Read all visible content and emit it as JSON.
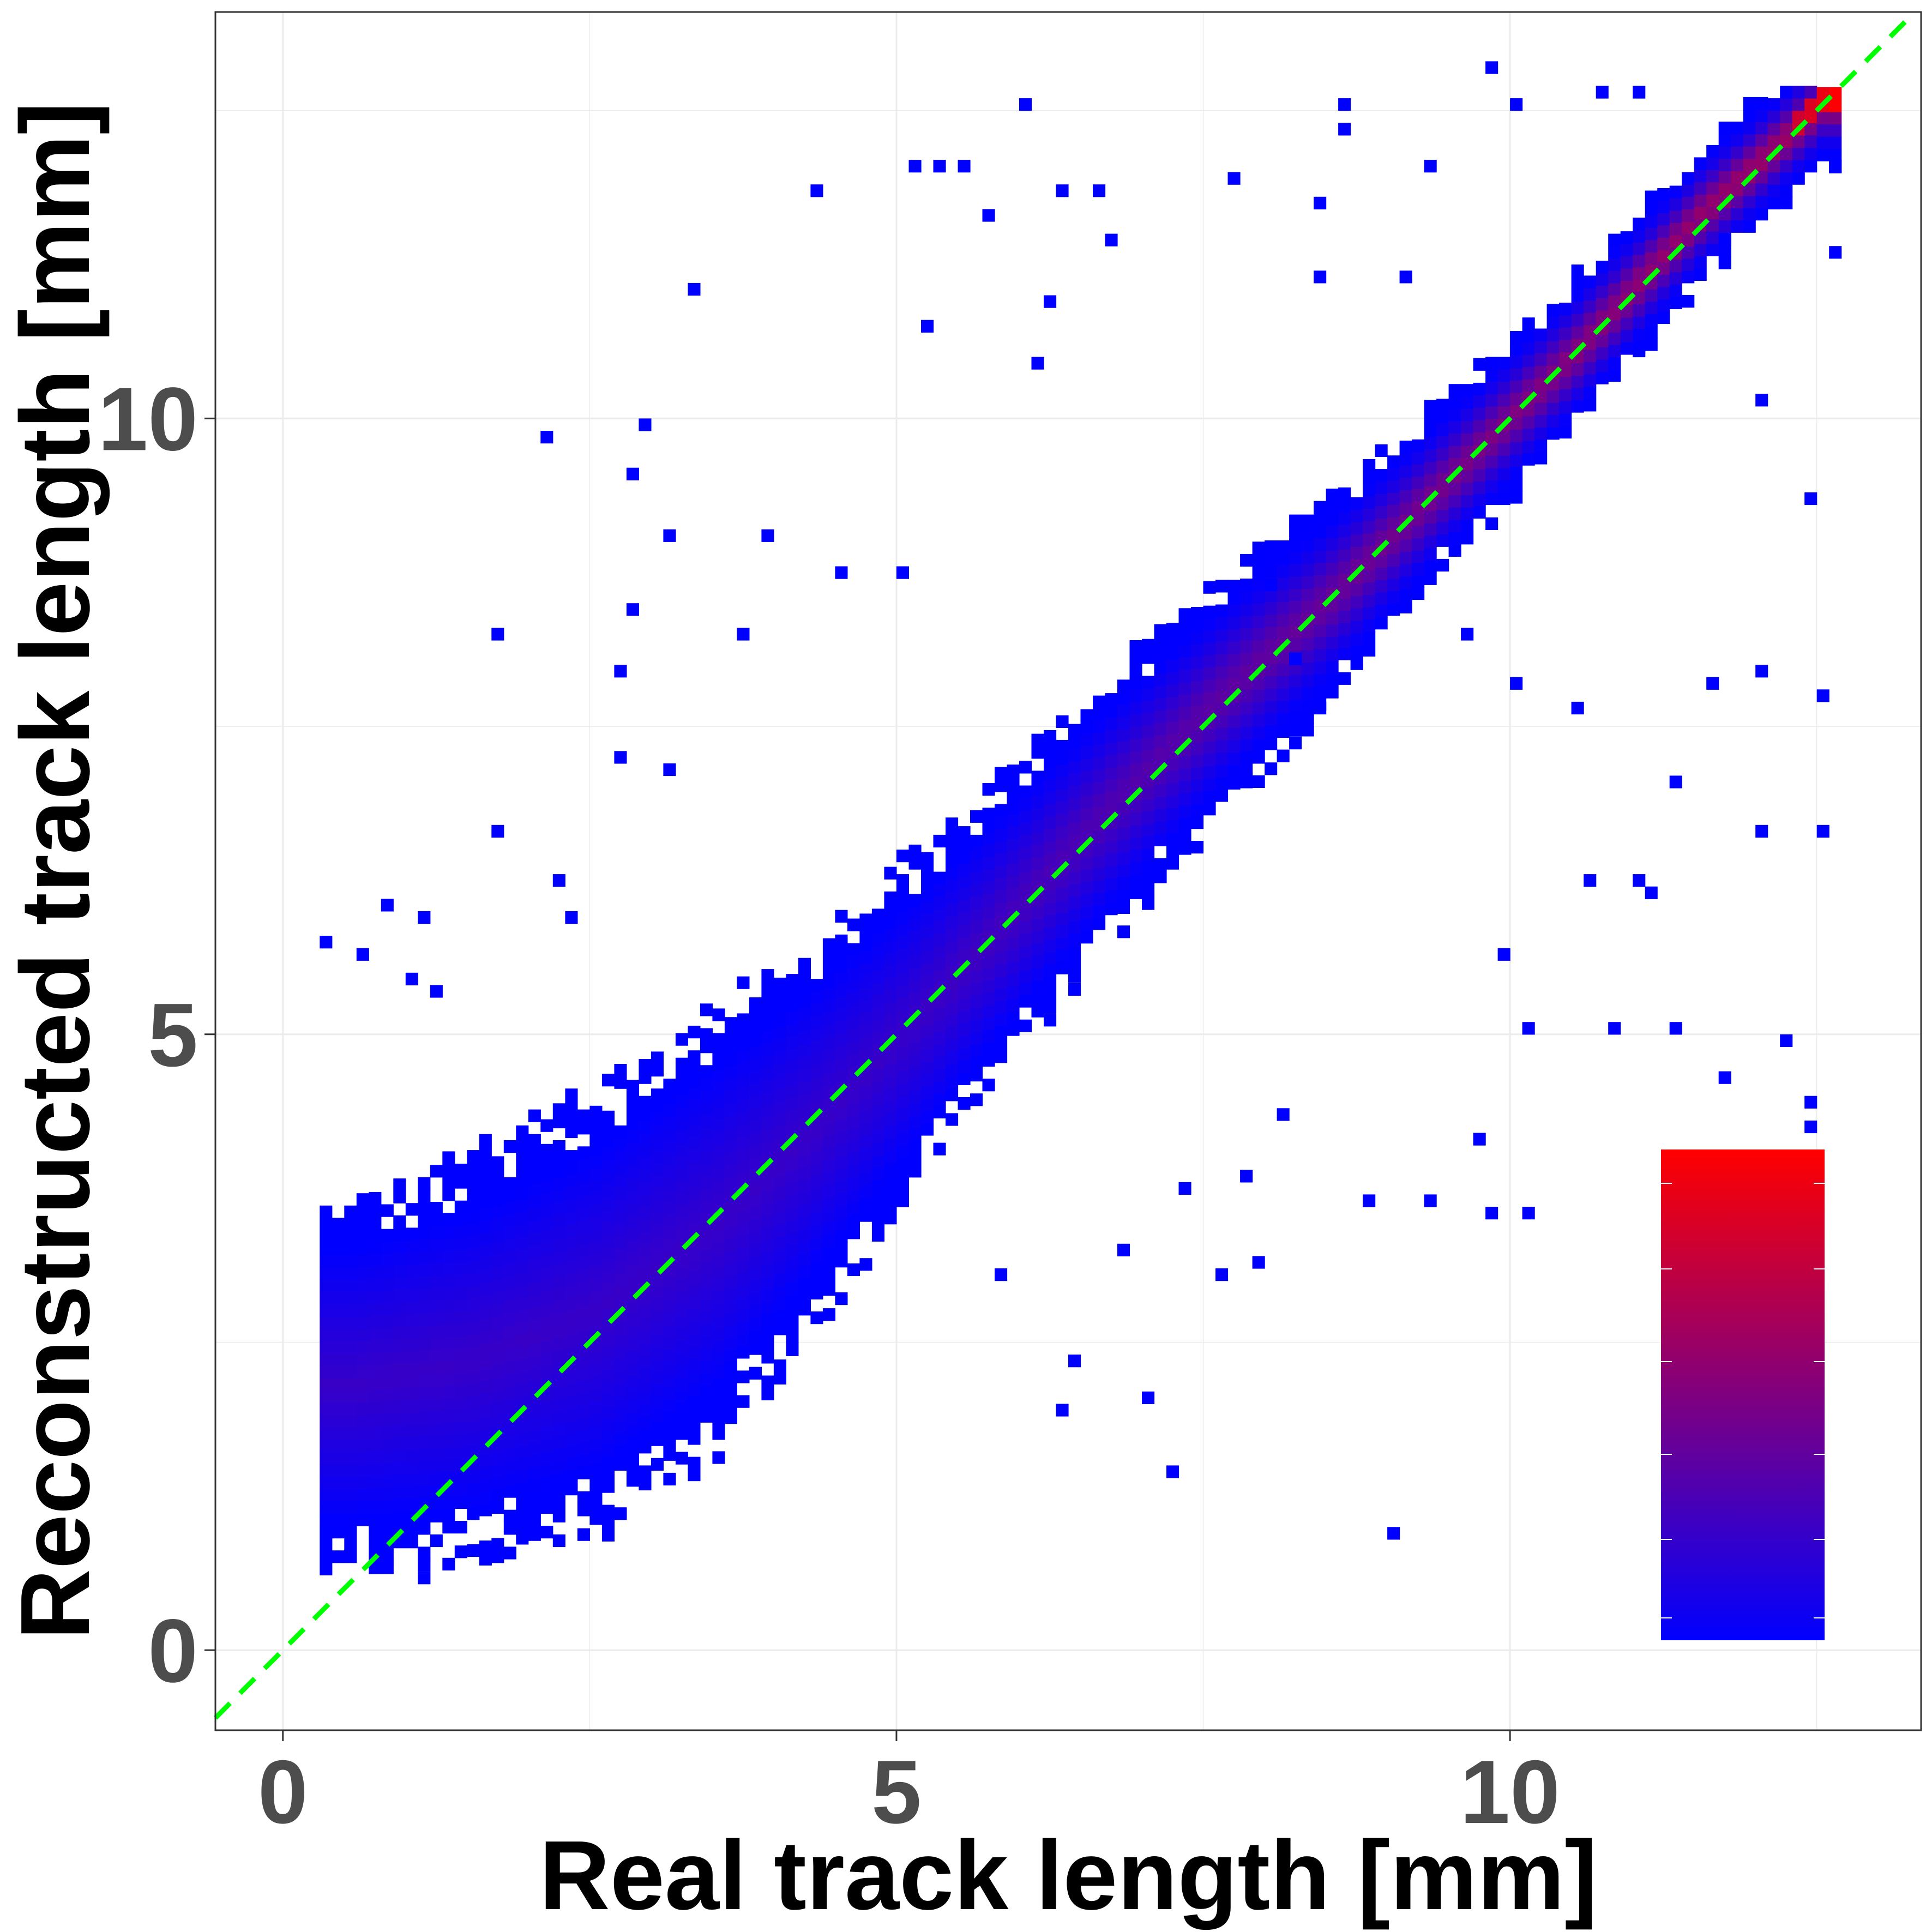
{
  "chart_data": {
    "type": "heatmap",
    "xlabel": "Real track length [mm]",
    "ylabel": "Reconstructed track length [mm]",
    "xlim": [
      -0.55,
      13.35
    ],
    "ylim": [
      -0.65,
      13.3
    ],
    "xticks": [
      0,
      5,
      10
    ],
    "yticks": [
      0,
      5,
      10
    ],
    "xtick_labels": [
      "0",
      "5",
      "10"
    ],
    "ytick_labels": [
      "0",
      "5",
      "10"
    ],
    "bin_width": 0.1,
    "grid": true,
    "reference_line": {
      "slope": 1,
      "intercept": 0,
      "style": "dashed",
      "color": "#00ff00"
    },
    "colors": {
      "low": "#0000ff",
      "high": "#ff0000",
      "outline": "#000000"
    },
    "legend": {
      "kind": "colorbar",
      "placement": "bottom-right",
      "labels": []
    },
    "density_profile": [
      {
        "x": 0.5,
        "y": 2.1,
        "spread": 1.1
      },
      {
        "x": 1.5,
        "y": 2.3,
        "spread": 1.2
      },
      {
        "x": 2.5,
        "y": 2.7,
        "spread": 1.3
      },
      {
        "x": 3.5,
        "y": 3.4,
        "spread": 1.3
      },
      {
        "x": 4.5,
        "y": 4.4,
        "spread": 1.1
      },
      {
        "x": 5.5,
        "y": 5.5,
        "spread": 0.9
      },
      {
        "x": 6.5,
        "y": 6.6,
        "spread": 0.8
      },
      {
        "x": 7.5,
        "y": 7.6,
        "spread": 0.7
      },
      {
        "x": 8.5,
        "y": 8.5,
        "spread": 0.6
      },
      {
        "x": 9.5,
        "y": 9.5,
        "spread": 0.5
      },
      {
        "x": 10.5,
        "y": 10.5,
        "spread": 0.45
      },
      {
        "x": 11.5,
        "y": 11.6,
        "spread": 0.4
      },
      {
        "x": 12.5,
        "y": 12.5,
        "spread": 0.35
      }
    ],
    "outliers": [
      [
        6.0,
        12.5
      ],
      [
        5.1,
        12.0
      ],
      [
        5.3,
        12.0
      ],
      [
        5.5,
        12.0
      ],
      [
        4.3,
        11.8
      ],
      [
        6.3,
        11.8
      ],
      [
        6.6,
        11.8
      ],
      [
        5.7,
        11.6
      ],
      [
        6.7,
        11.4
      ],
      [
        6.2,
        10.9
      ],
      [
        3.3,
        11.0
      ],
      [
        6.1,
        10.4
      ],
      [
        5.2,
        10.7
      ],
      [
        3.9,
        9.0
      ],
      [
        3.1,
        9.0
      ],
      [
        2.9,
        9.9
      ],
      [
        2.1,
        9.8
      ],
      [
        2.8,
        9.5
      ],
      [
        4.5,
        8.7
      ],
      [
        5.0,
        8.7
      ],
      [
        2.8,
        8.4
      ],
      [
        3.7,
        8.2
      ],
      [
        1.7,
        8.2
      ],
      [
        2.7,
        7.9
      ],
      [
        2.7,
        7.2
      ],
      [
        3.1,
        7.1
      ],
      [
        1.7,
        6.6
      ],
      [
        2.2,
        6.2
      ],
      [
        2.3,
        5.9
      ],
      [
        0.8,
        6.0
      ],
      [
        1.1,
        5.9
      ],
      [
        0.3,
        5.7
      ],
      [
        0.6,
        5.6
      ],
      [
        1.0,
        5.4
      ],
      [
        1.2,
        5.3
      ],
      [
        8.0,
        8.6
      ],
      [
        8.2,
        8.0
      ],
      [
        8.4,
        7.6
      ],
      [
        9.6,
        8.2
      ],
      [
        10.0,
        7.8
      ],
      [
        10.5,
        7.6
      ],
      [
        11.6,
        7.8
      ],
      [
        12.0,
        7.9
      ],
      [
        12.5,
        7.7
      ],
      [
        11.3,
        7.0
      ],
      [
        12.0,
        6.6
      ],
      [
        12.5,
        6.6
      ],
      [
        10.6,
        6.2
      ],
      [
        11.0,
        6.2
      ],
      [
        9.9,
        5.6
      ],
      [
        10.1,
        5.0
      ],
      [
        10.8,
        5.0
      ],
      [
        11.3,
        5.0
      ],
      [
        12.2,
        4.9
      ],
      [
        12.4,
        4.4
      ],
      [
        11.7,
        4.6
      ],
      [
        9.7,
        4.1
      ],
      [
        9.8,
        3.5
      ],
      [
        8.8,
        3.6
      ],
      [
        9.3,
        3.6
      ],
      [
        7.8,
        3.8
      ],
      [
        8.1,
        4.3
      ],
      [
        7.3,
        3.7
      ],
      [
        7.9,
        3.1
      ],
      [
        7.6,
        3.0
      ],
      [
        6.8,
        3.2
      ],
      [
        5.8,
        3.0
      ],
      [
        6.4,
        2.3
      ],
      [
        6.3,
        1.9
      ],
      [
        7.0,
        2.0
      ],
      [
        7.2,
        1.4
      ],
      [
        9.0,
        0.9
      ],
      [
        10.1,
        3.5
      ],
      [
        12.4,
        4.2
      ],
      [
        11.1,
        6.1
      ],
      [
        11.0,
        10.5
      ],
      [
        12.4,
        9.3
      ],
      [
        12.0,
        10.1
      ],
      [
        11.7,
        11.4
      ],
      [
        12.6,
        11.3
      ],
      [
        8.6,
        12.5
      ],
      [
        8.6,
        12.3
      ],
      [
        7.7,
        11.9
      ],
      [
        8.4,
        11.7
      ],
      [
        8.4,
        11.1
      ],
      [
        9.1,
        11.1
      ],
      [
        10.7,
        12.6
      ],
      [
        10.0,
        12.5
      ],
      [
        9.8,
        12.8
      ],
      [
        9.3,
        12.0
      ],
      [
        11.0,
        12.6
      ],
      [
        12.6,
        12.0
      ]
    ]
  }
}
